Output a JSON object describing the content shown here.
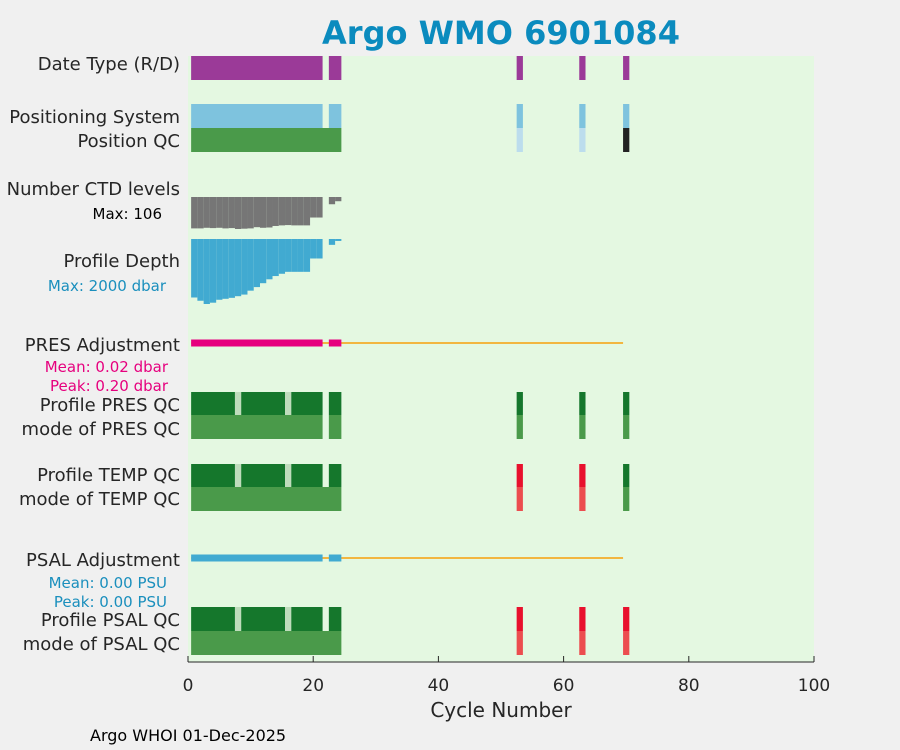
{
  "chart_data": {
    "type": "table",
    "title": "Argo WMO 6901084",
    "xlabel": "Cycle Number",
    "xlim": [
      0,
      100
    ],
    "xticks": [
      0,
      20,
      40,
      60,
      80,
      100
    ],
    "footer": "Argo WHOI 01-Dec-2025",
    "cycles": [
      1,
      2,
      3,
      4,
      5,
      6,
      7,
      8,
      9,
      10,
      11,
      12,
      13,
      14,
      15,
      16,
      17,
      18,
      19,
      20,
      21,
      23,
      24,
      53,
      63,
      70
    ],
    "rows": {
      "date_type": {
        "label": "Date Type (R/D)",
        "color": "#9b3a98",
        "cycles": "all"
      },
      "positioning_system": {
        "label": "Positioning System",
        "color": "#7ec3de",
        "cycles": "all"
      },
      "position_qc": {
        "label": "Position QC",
        "segments": [
          {
            "from": 1,
            "to": 24,
            "color": "#4a9a4a"
          },
          {
            "from": 53,
            "to": 53,
            "color": "#bcdded"
          },
          {
            "from": 63,
            "to": 63,
            "color": "#bcdded"
          },
          {
            "from": 70,
            "to": 70,
            "color": "#222222"
          }
        ]
      },
      "ctd_levels": {
        "label": "Number CTD levels",
        "annotation": "Max: 106",
        "annotation_color": "#000000",
        "color": "#767676",
        "max": 106,
        "values": [
          {
            "cycle": 1,
            "v": 104
          },
          {
            "cycle": 2,
            "v": 104
          },
          {
            "cycle": 3,
            "v": 102
          },
          {
            "cycle": 4,
            "v": 103
          },
          {
            "cycle": 5,
            "v": 102
          },
          {
            "cycle": 6,
            "v": 104
          },
          {
            "cycle": 7,
            "v": 103
          },
          {
            "cycle": 8,
            "v": 106
          },
          {
            "cycle": 9,
            "v": 105
          },
          {
            "cycle": 10,
            "v": 104
          },
          {
            "cycle": 11,
            "v": 100
          },
          {
            "cycle": 12,
            "v": 102
          },
          {
            "cycle": 13,
            "v": 101
          },
          {
            "cycle": 14,
            "v": 96
          },
          {
            "cycle": 15,
            "v": 94
          },
          {
            "cycle": 16,
            "v": 93
          },
          {
            "cycle": 17,
            "v": 94
          },
          {
            "cycle": 18,
            "v": 94
          },
          {
            "cycle": 19,
            "v": 94
          },
          {
            "cycle": 20,
            "v": 68
          },
          {
            "cycle": 21,
            "v": 68
          },
          {
            "cycle": 23,
            "v": 24
          },
          {
            "cycle": 24,
            "v": 14
          }
        ]
      },
      "profile_depth": {
        "label": "Profile Depth",
        "annotation": "Max: 2000 dbar",
        "annotation_color": "#1a8fbd",
        "color": "#41aad1",
        "max": 2000,
        "values": [
          {
            "cycle": 1,
            "v": 1800
          },
          {
            "cycle": 2,
            "v": 1900
          },
          {
            "cycle": 3,
            "v": 2000
          },
          {
            "cycle": 4,
            "v": 1960
          },
          {
            "cycle": 5,
            "v": 1870
          },
          {
            "cycle": 6,
            "v": 1840
          },
          {
            "cycle": 7,
            "v": 1810
          },
          {
            "cycle": 8,
            "v": 1760
          },
          {
            "cycle": 9,
            "v": 1710
          },
          {
            "cycle": 10,
            "v": 1590
          },
          {
            "cycle": 11,
            "v": 1480
          },
          {
            "cycle": 12,
            "v": 1360
          },
          {
            "cycle": 13,
            "v": 1240
          },
          {
            "cycle": 14,
            "v": 1140
          },
          {
            "cycle": 15,
            "v": 1070
          },
          {
            "cycle": 16,
            "v": 1010
          },
          {
            "cycle": 17,
            "v": 1010
          },
          {
            "cycle": 18,
            "v": 1010
          },
          {
            "cycle": 19,
            "v": 1010
          },
          {
            "cycle": 20,
            "v": 600
          },
          {
            "cycle": 21,
            "v": 600
          },
          {
            "cycle": 23,
            "v": 180
          },
          {
            "cycle": 24,
            "v": 60
          }
        ]
      },
      "pres_adjustment": {
        "label": "PRES Adjustment",
        "mean": "Mean: 0.02 dbar",
        "peak": "Peak: 0.20 dbar",
        "annotation_color": "#e6007e",
        "bar_color": "#e6007e",
        "line_color": "#f2b640",
        "bar_segments": [
          [
            1,
            21
          ],
          [
            23,
            24
          ]
        ],
        "line_range": [
          1,
          70
        ]
      },
      "profile_pres_qc": {
        "label": "Profile PRES QC",
        "segments": [
          {
            "from": 1,
            "to": 7,
            "color": "#15772c"
          },
          {
            "from": 8,
            "to": 8,
            "color": "#bfdcbc"
          },
          {
            "from": 9,
            "to": 15,
            "color": "#15772c"
          },
          {
            "from": 16,
            "to": 16,
            "color": "#bfdcbc"
          },
          {
            "from": 17,
            "to": 21,
            "color": "#15772c"
          },
          {
            "from": 23,
            "to": 24,
            "color": "#15772c"
          },
          {
            "from": 53,
            "to": 53,
            "color": "#15772c"
          },
          {
            "from": 63,
            "to": 63,
            "color": "#15772c"
          },
          {
            "from": 70,
            "to": 70,
            "color": "#15772c"
          }
        ]
      },
      "mode_pres_qc": {
        "label": "mode of PRES QC",
        "color": "#4a9a4a",
        "cycles": "all"
      },
      "profile_temp_qc": {
        "label": "Profile TEMP QC",
        "segments": [
          {
            "from": 1,
            "to": 7,
            "color": "#15772c"
          },
          {
            "from": 8,
            "to": 8,
            "color": "#bfdcbc"
          },
          {
            "from": 9,
            "to": 15,
            "color": "#15772c"
          },
          {
            "from": 16,
            "to": 16,
            "color": "#bfdcbc"
          },
          {
            "from": 17,
            "to": 21,
            "color": "#15772c"
          },
          {
            "from": 23,
            "to": 24,
            "color": "#15772c"
          },
          {
            "from": 53,
            "to": 53,
            "color": "#e8112d"
          },
          {
            "from": 63,
            "to": 63,
            "color": "#e8112d"
          },
          {
            "from": 70,
            "to": 70,
            "color": "#15772c"
          }
        ]
      },
      "mode_temp_qc": {
        "label": "mode of TEMP QC",
        "segments": [
          {
            "from": 1,
            "to": 24,
            "color": "#4a9a4a"
          },
          {
            "from": 53,
            "to": 53,
            "color": "#ec4d4f"
          },
          {
            "from": 63,
            "to": 63,
            "color": "#ec4d4f"
          },
          {
            "from": 70,
            "to": 70,
            "color": "#4a9a4a"
          }
        ]
      },
      "psal_adjustment": {
        "label": "PSAL Adjustment",
        "mean": "Mean: 0.00 PSU",
        "peak": "Peak: 0.00 PSU",
        "annotation_color": "#1a8fbd",
        "bar_color": "#41aad1",
        "line_color": "#f2b640",
        "bar_segments": [
          [
            1,
            21
          ],
          [
            23,
            24
          ]
        ],
        "line_range": [
          1,
          70
        ]
      },
      "profile_psal_qc": {
        "label": "Profile PSAL QC",
        "segments": [
          {
            "from": 1,
            "to": 7,
            "color": "#15772c"
          },
          {
            "from": 8,
            "to": 8,
            "color": "#bfdcbc"
          },
          {
            "from": 9,
            "to": 15,
            "color": "#15772c"
          },
          {
            "from": 16,
            "to": 16,
            "color": "#bfdcbc"
          },
          {
            "from": 17,
            "to": 21,
            "color": "#15772c"
          },
          {
            "from": 23,
            "to": 24,
            "color": "#15772c"
          },
          {
            "from": 53,
            "to": 53,
            "color": "#e8112d"
          },
          {
            "from": 63,
            "to": 63,
            "color": "#e8112d"
          },
          {
            "from": 70,
            "to": 70,
            "color": "#e8112d"
          }
        ]
      },
      "mode_psal_qc": {
        "label": "mode of PSAL QC",
        "segments": [
          {
            "from": 1,
            "to": 24,
            "color": "#4a9a4a"
          },
          {
            "from": 53,
            "to": 53,
            "color": "#ec4d4f"
          },
          {
            "from": 63,
            "to": 63,
            "color": "#ec4d4f"
          },
          {
            "from": 70,
            "to": 70,
            "color": "#ec4d4f"
          }
        ]
      }
    },
    "colors": {
      "plot_background": "#e4f8e1",
      "figure_background": "#f0f0f0",
      "title": "#0b8bbe"
    }
  }
}
